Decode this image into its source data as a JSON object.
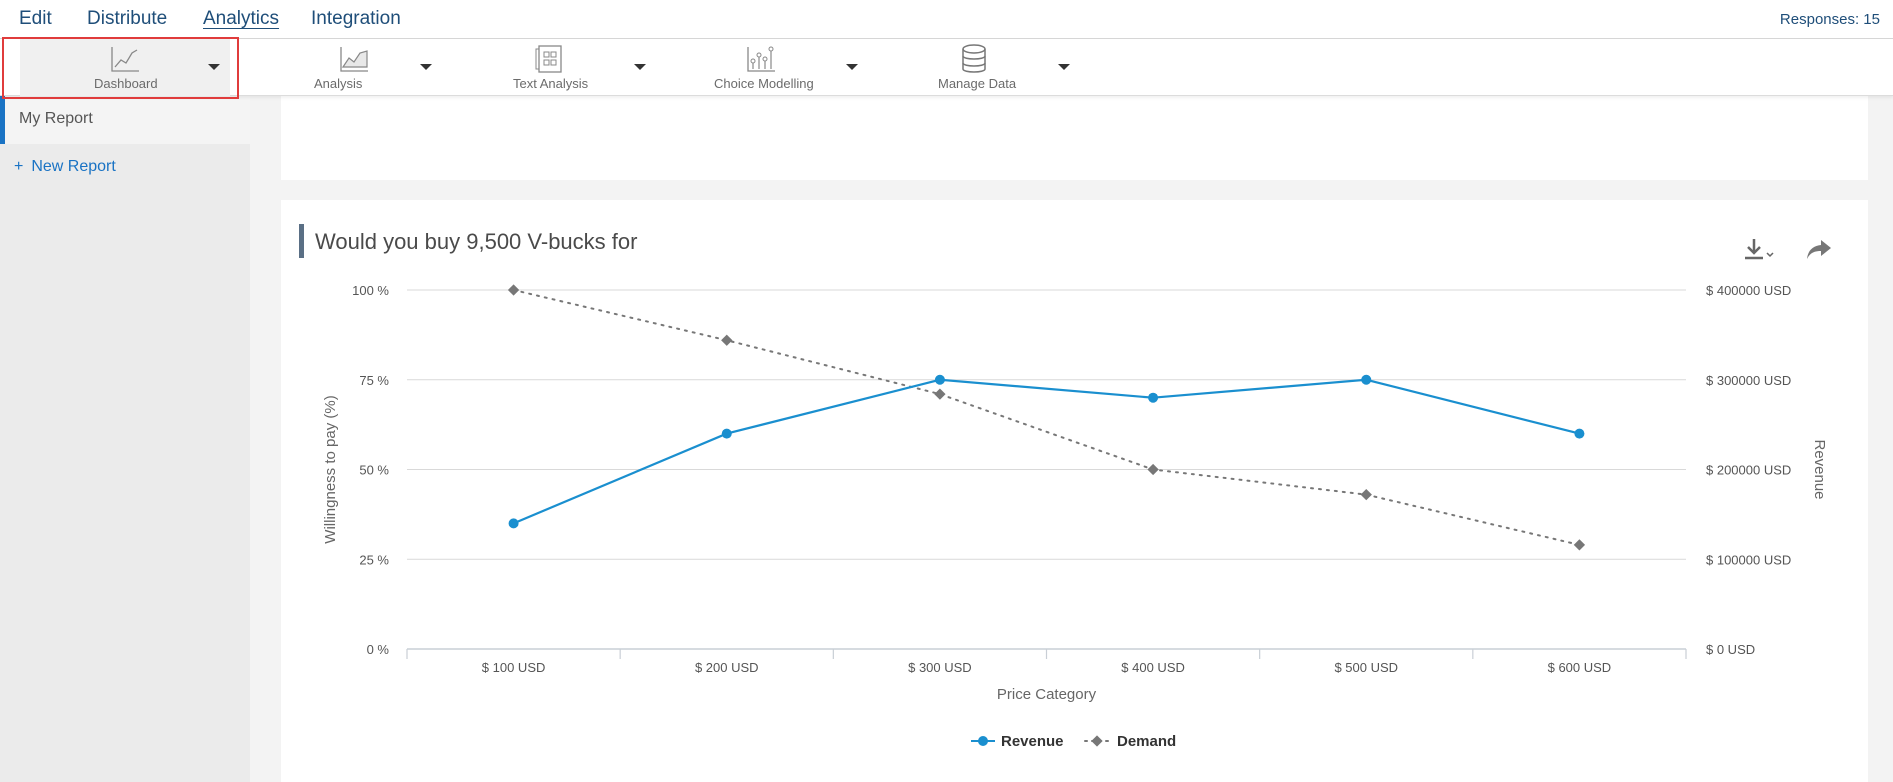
{
  "nav": {
    "tabs": [
      {
        "label": "Edit"
      },
      {
        "label": "Distribute"
      },
      {
        "label": "Analytics",
        "active": true
      },
      {
        "label": "Integration"
      }
    ],
    "responses": "Responses: 15"
  },
  "toolbar": {
    "items": [
      {
        "label": "Dashboard",
        "icon": "line-chart-icon"
      },
      {
        "label": "Analysis",
        "icon": "area-chart-icon"
      },
      {
        "label": "Text Analysis",
        "icon": "text-grid-icon"
      },
      {
        "label": "Choice Modelling",
        "icon": "scatter-chart-icon"
      },
      {
        "label": "Manage Data",
        "icon": "database-icon"
      }
    ]
  },
  "sidebar": {
    "report": "My Report",
    "new_report": "New Report"
  },
  "chart": {
    "title": "Would you buy 9,500 V-bucks for"
  },
  "colors": {
    "accent": "#1a73c4",
    "revenue": "#1a8fcf",
    "demand": "#777777",
    "highlight": "#e03c3c"
  },
  "chart_data": {
    "type": "line",
    "title": "Would you buy 9,500 V-bucks for",
    "xlabel": "Price Category",
    "ylabel_left": "Willingness to pay (%)",
    "ylabel_right": "Revenue",
    "categories": [
      "$ 100 USD",
      "$ 200 USD",
      "$ 300 USD",
      "$ 400 USD",
      "$ 500 USD",
      "$ 600 USD"
    ],
    "y_left_ticks": [
      "0 %",
      "25 %",
      "50 %",
      "75 %",
      "100 %"
    ],
    "y_right_ticks": [
      "$ 0 USD",
      "$ 100000 USD",
      "$ 200000 USD",
      "$ 300000 USD",
      "$ 400000 USD"
    ],
    "ylim_left": [
      0,
      100
    ],
    "ylim_right": [
      0,
      400000
    ],
    "series": [
      {
        "name": "Revenue",
        "axis": "right",
        "values": [
          140000,
          240000,
          300000,
          280000,
          300000,
          240000
        ]
      },
      {
        "name": "Demand",
        "axis": "left",
        "values": [
          100,
          86,
          71,
          50,
          43,
          29
        ]
      }
    ],
    "legend": "bottom-center",
    "grid": true
  }
}
